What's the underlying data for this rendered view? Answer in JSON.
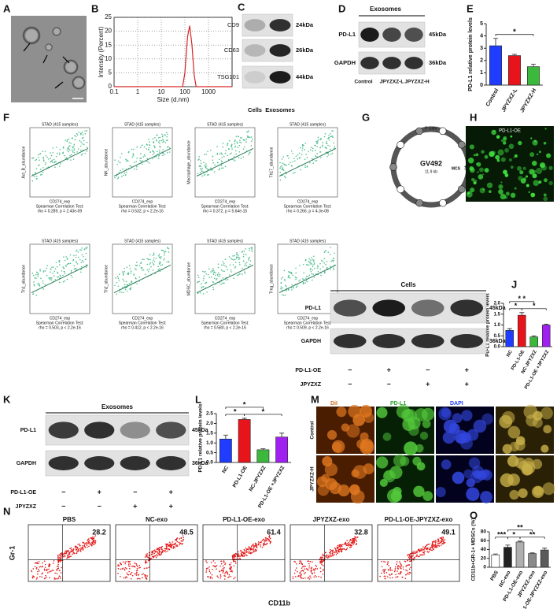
{
  "panel_letters": [
    "A",
    "B",
    "C",
    "D",
    "E",
    "F",
    "G",
    "H",
    "I",
    "J",
    "K",
    "L",
    "M",
    "N",
    "O"
  ],
  "chart_data": [
    {
      "type": "line",
      "x_label": "Size (d.nm)",
      "y_label": "Intensity (Percent)",
      "x": [
        0.1,
        50,
        80,
        100,
        130,
        160,
        200,
        250,
        300,
        1000,
        10000
      ],
      "values": [
        0,
        0,
        0,
        5,
        18,
        22,
        15,
        4,
        0,
        0,
        0
      ],
      "xlim": [
        0.1,
        10000
      ],
      "xticks": [
        0.1,
        1,
        10,
        100,
        1000
      ],
      "log_x": true,
      "ylim": [
        0,
        25
      ],
      "yticks": [
        0,
        5,
        10,
        15,
        20,
        25
      ],
      "grid": true,
      "color": "#d62728"
    },
    {
      "type": "bar",
      "y_label": "PD-L1 relative protein levels",
      "categories": [
        "Control",
        "JPYZXZ-L",
        "JPYZXZ-H"
      ],
      "values": [
        3.2,
        2.4,
        1.5
      ],
      "errors": [
        0.6,
        0.1,
        0.2
      ],
      "colors": [
        "#1f3cff",
        "#e8141c",
        "#3cb83c"
      ],
      "ylim": [
        0,
        5
      ],
      "yticks": [
        0,
        1,
        2,
        3,
        4,
        5
      ],
      "annotations": [
        "*"
      ]
    },
    {
      "type": "bar",
      "y_label": "PD-L1 relative protein levels",
      "categories": [
        "NC",
        "PD-L1-OE",
        "NC-JPYZXZ",
        "PD-L1-OE +JPYZXZ"
      ],
      "values": [
        0.75,
        1.45,
        0.45,
        1.0
      ],
      "errors": [
        0.08,
        0.12,
        0.05,
        0.04
      ],
      "colors": [
        "#1f3cff",
        "#e8141c",
        "#3cb83c",
        "#a020f0"
      ],
      "ylim": [
        0,
        2
      ],
      "yticks": [
        {
          "value": 0,
          "label": "0.0"
        },
        0.5,
        {
          "value": 1,
          "label": "1.0"
        },
        1.5,
        {
          "value": 2,
          "label": "2.0"
        }
      ],
      "annotations": [
        "*",
        "* *",
        "*"
      ]
    },
    {
      "type": "bar",
      "y_label": "PD-L1 relative protein levels",
      "categories": [
        "NC",
        "PD-L1-OE",
        "NC-JPYZXZ",
        "PD-L1-OE +JPYZXZ"
      ],
      "values": [
        1.2,
        2.2,
        0.65,
        1.3
      ],
      "errors": [
        0.2,
        0.06,
        0.05,
        0.2
      ],
      "colors": [
        "#1f3cff",
        "#e8141c",
        "#3cb83c",
        "#a020f0"
      ],
      "ylim": [
        0,
        2.5
      ],
      "yticks": [
        {
          "value": 0,
          "label": "0.0"
        },
        0.5,
        {
          "value": 1,
          "label": "1.0"
        },
        1.5,
        {
          "value": 2,
          "label": "2.0"
        },
        2.5
      ],
      "annotations": [
        "*",
        "*",
        "*"
      ]
    },
    {
      "type": "bar",
      "y_label": "CD11b+GR-1+ MDSCs (%)",
      "categories": [
        "PBS",
        "NC-exo",
        "PD-L1-OE-exo",
        "JPYZXZ-exo",
        "PD-L1-OE-JPYZXZ-exo"
      ],
      "values": [
        28,
        45,
        57,
        31,
        39
      ],
      "errors": [
        2,
        5,
        2,
        1.5,
        4
      ],
      "colors": [
        "#ffffff",
        "#222222",
        "#b0b0b0",
        "#8a8a8a",
        "#5a5a5a"
      ],
      "ylim": [
        0,
        80
      ],
      "yticks": [
        0,
        20,
        40,
        60,
        80
      ],
      "annotations": [
        "***",
        "**",
        "*",
        "**"
      ]
    }
  ],
  "blots": {
    "C": {
      "rows": [
        "CD9",
        "CD63",
        "TSG101"
      ],
      "sizes": [
        "24kDa",
        "26kDa",
        "44kDa"
      ],
      "lanes": [
        "Cells",
        "Exosomes"
      ]
    },
    "D": {
      "title": "Exosomes",
      "rows": [
        "PD-L1",
        "GAPDH"
      ],
      "sizes": [
        "45kDa",
        "36kDa"
      ],
      "lanes": [
        "Control",
        "JPYZXZ-L",
        "JPYZXZ-H"
      ]
    },
    "I": {
      "title": "Cells",
      "rows": [
        "PD-L1",
        "GAPDH"
      ],
      "sizes": [
        "45kDa",
        "36kDa"
      ],
      "treatments": [
        "PD-L1-OE",
        "JPYZXZ"
      ],
      "signs": [
        [
          "−",
          "+",
          "−",
          "+"
        ],
        [
          "−",
          "−",
          "+",
          "+"
        ]
      ]
    },
    "K": {
      "title": "Exosomes",
      "rows": [
        "PD-L1",
        "GAPDH"
      ],
      "sizes": [
        "45kDa",
        "36kDa"
      ],
      "treatments": [
        "PD-L1-OE",
        "JPYZXZ"
      ],
      "signs": [
        [
          "−",
          "+",
          "−",
          "+"
        ],
        [
          "−",
          "−",
          "+",
          "+"
        ]
      ]
    }
  },
  "F": {
    "plots": [
      {
        "title": "STAD (415 samples)",
        "y_label": "Act_B_abundance",
        "x_label": "CD274_exp",
        "test": "Spearman Correlation Test:",
        "stats": "rho = 0.289, p = 2.43e-09"
      },
      {
        "title": "STAD (415 samples)",
        "y_label": "NK_abundance",
        "x_label": "CD274_exp",
        "test": "Spearman Correlation Test:",
        "stats": "rho = 0.532, p < 2.2e-16"
      },
      {
        "title": "STAD (415 samples)",
        "y_label": "Macrophage_abundance",
        "x_label": "CD274_exp",
        "test": "Spearman Correlation Test:",
        "stats": "rho = 0.372, p = 5.64e-15"
      },
      {
        "title": "STAD (415 samples)",
        "y_label": "Th17_abundance",
        "x_label": "CD274_exp",
        "test": "Spearman Correlation Test:",
        "stats": "rho = 0.266, p = 4.3e-08"
      },
      {
        "title": "STAD (415 samples)",
        "y_label": "Th1_abundance",
        "x_label": "CD274_exp",
        "test": "Spearman Correlation Test:",
        "stats": "rho = 0.503, p < 2.2e-16"
      },
      {
        "title": "STAD (415 samples)",
        "y_label": "Th2_abundance",
        "x_label": "CD274_exp",
        "test": "Spearman Correlation Test:",
        "stats": "rho = 0.412, p < 2.2e-16"
      },
      {
        "title": "STAD (415 samples)",
        "y_label": "MDSC_abundance",
        "x_label": "CD274_exp",
        "test": "Spearman Correlation Test:",
        "stats": "rho = 0.580, p < 2.2e-16"
      },
      {
        "title": "STAD (415 samples)",
        "y_label": "Treg_abundance",
        "x_label": "CD274_exp",
        "test": "Spearman Correlation Test:",
        "stats": "rho = 0.509, p < 2.2e-16"
      }
    ]
  },
  "G": {
    "name": "GV492",
    "size": "11.9 kb",
    "mcs": "MCS",
    "sites": [
      "BamHI",
      "AgeI"
    ],
    "promoter": "P CMV"
  },
  "H": {
    "title": "PD-L1-OE"
  },
  "M": {
    "channels": [
      "DiI",
      "PD-L1",
      "DAPI"
    ],
    "rows": [
      "Control",
      "JPYZXZ-H"
    ]
  },
  "N": {
    "samples": [
      "PBS",
      "NC-exo",
      "PD-L1-OE-exo",
      "JPYZXZ-exo",
      "PD-L1-OE-JPYZXZ-exo"
    ],
    "percent": [
      28.2,
      48.5,
      61.4,
      32.8,
      49.1
    ],
    "x_label": "CD11b",
    "y_label": "Gr-1"
  }
}
